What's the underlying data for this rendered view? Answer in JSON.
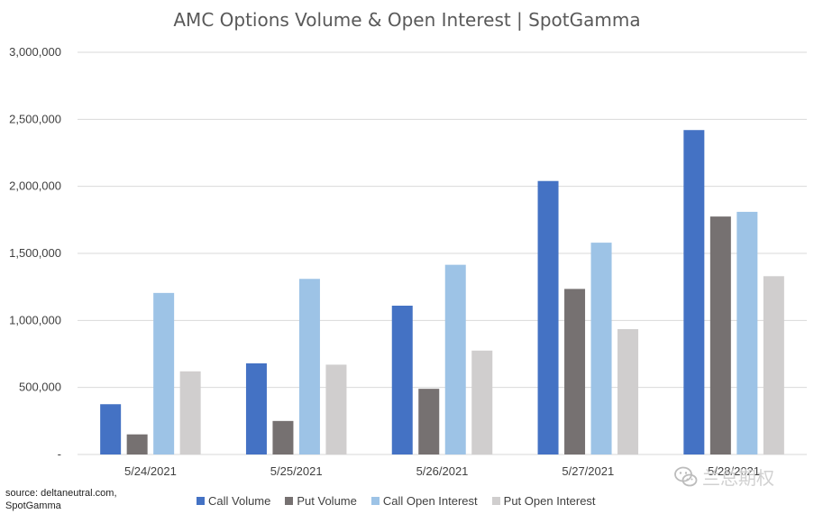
{
  "colors": {
    "call_volume": "#4472C4",
    "put_volume": "#767171",
    "call_oi": "#9DC3E6",
    "put_oi": "#D0CECE",
    "gridline": "#D9D9D9",
    "axis_text": "#404040"
  },
  "source_note": {
    "line1": "source: deltaneutral.com,",
    "line2": "SpotGamma"
  },
  "watermark": {
    "text": "兰总期权",
    "icon": "wechat-logo-icon"
  },
  "chart_data": {
    "type": "bar",
    "title": "AMC Options Volume & Open Interest | SpotGamma",
    "xlabel": "",
    "ylabel": "",
    "ylim": [
      0,
      3000000
    ],
    "yticks": [
      0,
      500000,
      1000000,
      1500000,
      2000000,
      2500000,
      3000000
    ],
    "ytick_labels": [
      "-",
      "500,000",
      "1,000,000",
      "1,500,000",
      "2,000,000",
      "2,500,000",
      "3,000,000"
    ],
    "grid": true,
    "legend_position": "bottom",
    "categories": [
      "5/24/2021",
      "5/25/2021",
      "5/26/2021",
      "5/27/2021",
      "5/28/2021"
    ],
    "series": [
      {
        "name": "Call Volume",
        "color_key": "call_volume",
        "values": [
          375000,
          680000,
          1110000,
          2040000,
          2420000
        ]
      },
      {
        "name": "Put Volume",
        "color_key": "put_volume",
        "values": [
          150000,
          250000,
          490000,
          1235000,
          1775000
        ]
      },
      {
        "name": "Call Open Interest",
        "color_key": "call_oi",
        "values": [
          1205000,
          1310000,
          1415000,
          1580000,
          1810000
        ]
      },
      {
        "name": "Put Open Interest",
        "color_key": "put_oi",
        "values": [
          620000,
          670000,
          775000,
          935000,
          1330000
        ]
      }
    ]
  }
}
